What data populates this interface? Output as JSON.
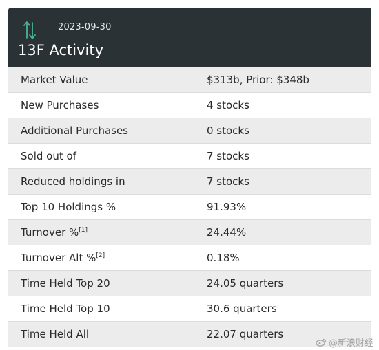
{
  "header": {
    "date": "2023-09-30",
    "title": "13F Activity",
    "icon": "transfer-arrows-icon",
    "background": "#2b3235",
    "icon_color": "#49b39a"
  },
  "rows": [
    {
      "label": "Market Value",
      "note": "",
      "value": "$313b, Prior: $348b"
    },
    {
      "label": "New Purchases",
      "note": "",
      "value": "4 stocks"
    },
    {
      "label": "Additional Purchases",
      "note": "",
      "value": "0 stocks"
    },
    {
      "label": "Sold out of",
      "note": "",
      "value": "7 stocks"
    },
    {
      "label": "Reduced holdings in",
      "note": "",
      "value": "7 stocks"
    },
    {
      "label": "Top 10 Holdings %",
      "note": "",
      "value": "91.93%"
    },
    {
      "label": "Turnover %",
      "note": "[1]",
      "value": "24.44%"
    },
    {
      "label": "Turnover Alt %",
      "note": "[2]",
      "value": "0.18%"
    },
    {
      "label": "Time Held Top 20",
      "note": "",
      "value": "24.05 quarters"
    },
    {
      "label": "Time Held Top 10",
      "note": "",
      "value": "30.6 quarters"
    },
    {
      "label": "Time Held All",
      "note": "",
      "value": "22.07 quarters"
    }
  ],
  "watermark": {
    "text": "@新浪财经",
    "icon": "weibo-icon"
  }
}
